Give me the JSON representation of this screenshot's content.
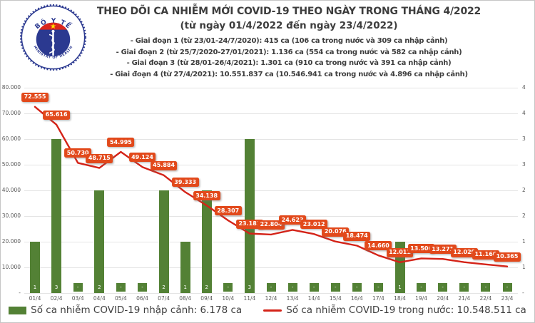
{
  "header": {
    "title": "THEO DÕI CA NHIỄM MỚI COVID-19 THEO NGÀY TRONG THÁNG 4/2022",
    "subtitle": "(từ ngày 01/4/2022 đến ngày 23/4/2022)",
    "bullets": [
      "- Giai đoạn 1 (từ 23/01-24/7/2020): 415 ca (106 ca trong nước và 309 ca nhập cảnh)",
      "- Giai đoạn 2 (từ 25/7/2020-27/01/2021): 1.136 ca (554 ca trong nước và 582 ca nhập cảnh)",
      "- Giai đoạn 3 (từ 28/01-26/4/2021): 1.301 ca (910 ca trong nước và 391 ca nhập cảnh)",
      "- Giai đoạn 4 (từ 27/4/2021): 10.551.837 ca (10.546.941 ca trong nước và 4.896 ca nhập cảnh)"
    ],
    "logo": {
      "top_text": "BỘ Y TẾ",
      "bottom_text": "MINISTRY OF HEALTH",
      "colors": {
        "navy": "#2b3990",
        "red": "#da251d",
        "star_yellow": "#ffde00"
      }
    }
  },
  "chart_data": {
    "type": "bar+line",
    "categories": [
      "01/4",
      "02/4",
      "03/4",
      "04/4",
      "05/4",
      "06/4",
      "07/4",
      "08/4",
      "09/4",
      "10/4",
      "11/4",
      "12/4",
      "13/4",
      "14/4",
      "15/4",
      "16/4",
      "17/4",
      "18/4",
      "19/4",
      "20/4",
      "21/4",
      "22/4",
      "23/4"
    ],
    "series": [
      {
        "name": "Số ca nhiễm COVID-19 nhập cảnh",
        "type": "bar",
        "axis": "right",
        "color": "#538135",
        "zero_label": "-",
        "values": [
          1,
          3,
          0,
          2,
          0,
          0,
          2,
          1,
          2,
          0,
          3,
          0,
          0,
          0,
          0,
          0,
          0,
          1,
          0,
          0,
          0,
          0,
          0
        ]
      },
      {
        "name": "Số ca nhiễm COVID-19 trong nước",
        "type": "line",
        "axis": "left",
        "color": "#d42318",
        "label_bg": "#e2491b",
        "values": [
          72555,
          65616,
          50730,
          48715,
          54995,
          49124,
          45884,
          39333,
          34138,
          28307,
          23181,
          22804,
          24623,
          23012,
          20076,
          18474,
          14660,
          12011,
          13500,
          13271,
          12029,
          11160,
          10365
        ]
      }
    ],
    "left_axis": {
      "min": 0,
      "max": 80000,
      "tick_labels": [
        "80.000",
        "70.000",
        "60.000",
        "50.000",
        "40.000",
        "30.000",
        "20.000",
        "10.000",
        "-"
      ]
    },
    "right_axis": {
      "min": 0,
      "max": 4,
      "tick_labels": [
        "4",
        "4",
        "3",
        "3",
        "2",
        "2",
        "1",
        "1",
        "-"
      ]
    },
    "grid": true,
    "legend_position": "bottom",
    "legend": [
      {
        "swatch": "bar",
        "label": "Số ca nhiễm COVID-19 nhập cảnh: 6.178 ca"
      },
      {
        "swatch": "line",
        "label": "Số ca nhiễm COVID-19 trong nước: 10.548.511 ca"
      }
    ]
  }
}
